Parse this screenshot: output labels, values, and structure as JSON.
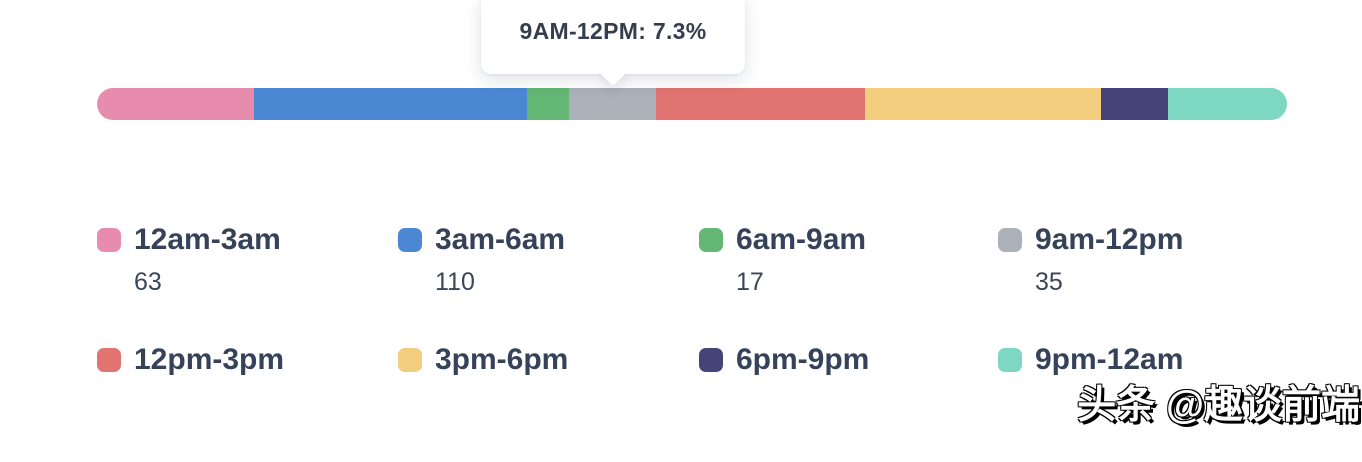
{
  "chart_data": {
    "type": "bar",
    "subtype": "horizontal-stacked-distribution",
    "title": "",
    "xlabel": "",
    "ylabel": "",
    "legend_position": "bottom",
    "grid": false,
    "segments": [
      {
        "label": "12am-3am",
        "value": 63,
        "percent": 13.2,
        "color": "#E88CAD"
      },
      {
        "label": "3am-6am",
        "value": 110,
        "percent": 22.9,
        "color": "#4C87D3"
      },
      {
        "label": "6am-9am",
        "value": 17,
        "percent": 3.5,
        "color": "#64B674"
      },
      {
        "label": "9am-12pm",
        "value": 35,
        "percent": 7.3,
        "color": "#AAB1B8"
      },
      {
        "label": "12pm-3pm",
        "value": null,
        "percent": 17.5,
        "color": "#E17370"
      },
      {
        "label": "3pm-6pm",
        "value": null,
        "percent": 19.8,
        "color": "#F2CE7E"
      },
      {
        "label": "6pm-9pm",
        "value": null,
        "percent": 5.6,
        "color": "#444478"
      },
      {
        "label": "9pm-12am",
        "value": null,
        "percent": 10.0,
        "color": "#7ED7C2"
      }
    ]
  },
  "tooltip": {
    "text": "9AM-12PM: 7.3%"
  },
  "legend": {
    "items": [
      {
        "label": "12am-3am",
        "value": "63",
        "color": "#E88CAD"
      },
      {
        "label": "3am-6am",
        "value": "110",
        "color": "#4C87D3"
      },
      {
        "label": "6am-9am",
        "value": "17",
        "color": "#64B674"
      },
      {
        "label": "9am-12pm",
        "value": "35",
        "color": "#AAB1B8"
      },
      {
        "label": "12pm-3pm",
        "value": "",
        "color": "#E17370"
      },
      {
        "label": "3pm-6pm",
        "value": "",
        "color": "#F2CE7E"
      },
      {
        "label": "6pm-9pm",
        "value": "",
        "color": "#444478"
      },
      {
        "label": "9pm-12am",
        "value": "",
        "color": "#7ED7C2"
      }
    ]
  },
  "watermark": {
    "text": "头条 @趣谈前端"
  }
}
